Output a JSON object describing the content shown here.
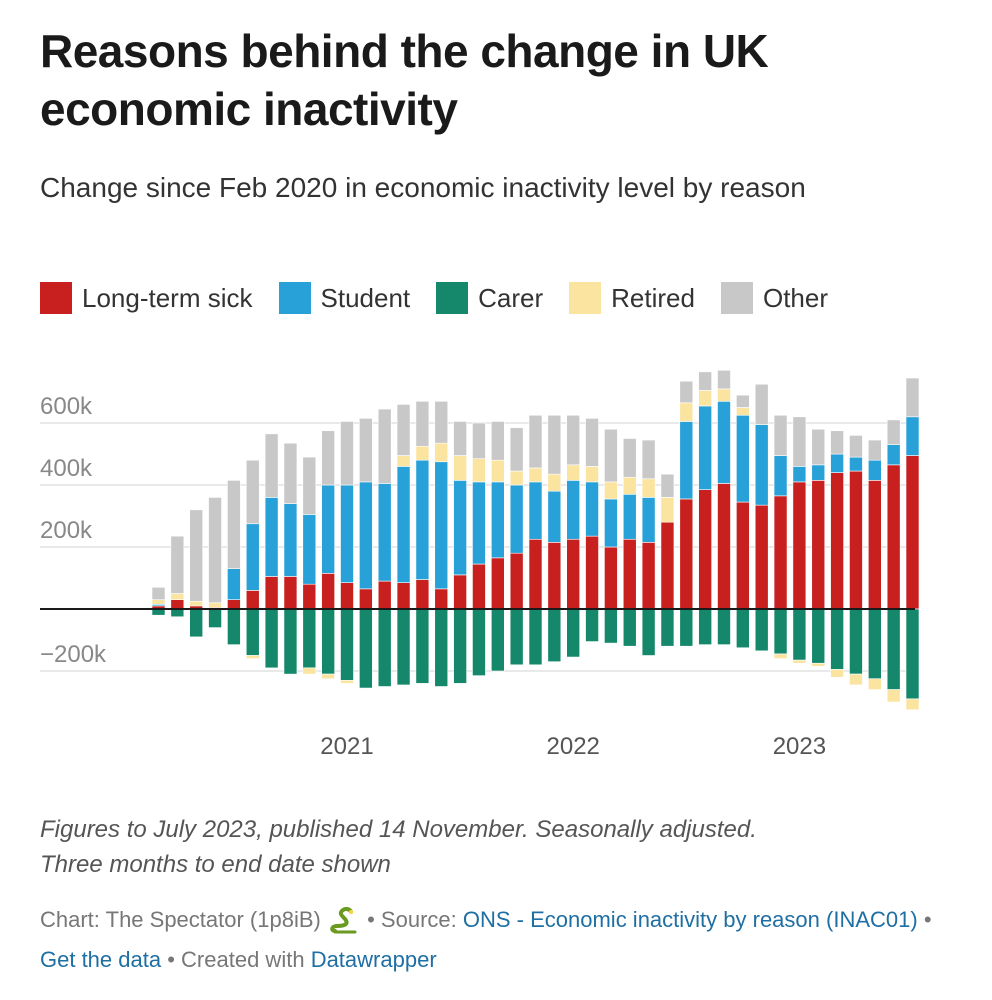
{
  "header": {
    "title": "Reasons behind the change in UK economic inactivity",
    "subtitle": "Change since Feb 2020 in economic inactivity level by reason"
  },
  "legend": [
    {
      "label": "Long-term sick",
      "color": "#c8201f"
    },
    {
      "label": "Student",
      "color": "#28a1d8"
    },
    {
      "label": "Carer",
      "color": "#15876a"
    },
    {
      "label": "Retired",
      "color": "#fbe3a0"
    },
    {
      "label": "Other",
      "color": "#c8c8c8"
    }
  ],
  "chart_data": {
    "type": "bar",
    "stacked": true,
    "x_end_months": [
      "2020-03",
      "2020-04",
      "2020-05",
      "2020-06",
      "2020-07",
      "2020-08",
      "2020-09",
      "2020-10",
      "2020-11",
      "2020-12",
      "2021-01",
      "2021-02",
      "2021-03",
      "2021-04",
      "2021-05",
      "2021-06",
      "2021-07",
      "2021-08",
      "2021-09",
      "2021-10",
      "2021-11",
      "2021-12",
      "2022-01",
      "2022-02",
      "2022-03",
      "2022-04",
      "2022-05",
      "2022-06",
      "2022-07",
      "2022-08",
      "2022-09",
      "2022-10",
      "2022-11",
      "2022-12",
      "2023-01",
      "2023-02",
      "2023-03",
      "2023-04",
      "2023-05",
      "2023-06",
      "2023-07"
    ],
    "x_ticks": [
      {
        "label": "2021",
        "month": "2021-01"
      },
      {
        "label": "2022",
        "month": "2022-01"
      },
      {
        "label": "2023",
        "month": "2023-01"
      }
    ],
    "y_ticks": [
      {
        "value": 600000,
        "label": "600k"
      },
      {
        "value": 400000,
        "label": "400k"
      },
      {
        "value": 200000,
        "label": "200k"
      },
      {
        "value": -200000,
        "label": "−200k"
      }
    ],
    "ylim": [
      -350000,
      800000
    ],
    "grid": true,
    "legend_position": "top",
    "series": [
      {
        "name": "Long-term sick",
        "color": "#c8201f",
        "values": [
          10000,
          30000,
          10000,
          5000,
          30000,
          60000,
          105000,
          105000,
          80000,
          115000,
          85000,
          65000,
          90000,
          85000,
          95000,
          65000,
          110000,
          145000,
          165000,
          180000,
          225000,
          215000,
          225000,
          235000,
          200000,
          225000,
          215000,
          280000,
          355000,
          385000,
          405000,
          345000,
          335000,
          365000,
          410000,
          415000,
          440000,
          445000,
          415000,
          465000,
          495000
        ]
      },
      {
        "name": "Student",
        "color": "#28a1d8",
        "values": [
          5000,
          0,
          0,
          0,
          100000,
          215000,
          255000,
          235000,
          225000,
          285000,
          315000,
          345000,
          315000,
          375000,
          385000,
          410000,
          305000,
          265000,
          245000,
          220000,
          185000,
          165000,
          190000,
          175000,
          155000,
          145000,
          145000,
          0,
          250000,
          270000,
          265000,
          280000,
          260000,
          130000,
          50000,
          50000,
          60000,
          45000,
          65000,
          65000,
          125000
        ]
      },
      {
        "name": "Carer",
        "color": "#15876a",
        "values": [
          -20000,
          -25000,
          -90000,
          -60000,
          -115000,
          -150000,
          -190000,
          -210000,
          -190000,
          -210000,
          -230000,
          -255000,
          -250000,
          -245000,
          -240000,
          -250000,
          -240000,
          -215000,
          -200000,
          -180000,
          -180000,
          -170000,
          -155000,
          -105000,
          -110000,
          -120000,
          -150000,
          -120000,
          -120000,
          -115000,
          -115000,
          -125000,
          -135000,
          -145000,
          -165000,
          -175000,
          -195000,
          -210000,
          -225000,
          -260000,
          -290000
        ]
      },
      {
        "name": "Retired",
        "color": "#fbe3a0",
        "values": [
          15000,
          20000,
          15000,
          15000,
          0,
          -10000,
          0,
          0,
          -20000,
          -15000,
          -10000,
          0,
          0,
          35000,
          45000,
          60000,
          80000,
          75000,
          70000,
          45000,
          45000,
          55000,
          50000,
          50000,
          55000,
          55000,
          60000,
          80000,
          60000,
          50000,
          40000,
          25000,
          0,
          -15000,
          -10000,
          -10000,
          -25000,
          -35000,
          -35000,
          -40000,
          -35000
        ]
      },
      {
        "name": "Other",
        "color": "#c8c8c8",
        "values": [
          40000,
          185000,
          295000,
          340000,
          285000,
          205000,
          205000,
          195000,
          185000,
          175000,
          205000,
          205000,
          240000,
          165000,
          145000,
          135000,
          110000,
          115000,
          125000,
          140000,
          170000,
          190000,
          160000,
          155000,
          170000,
          125000,
          125000,
          75000,
          70000,
          60000,
          60000,
          40000,
          130000,
          130000,
          160000,
          115000,
          75000,
          70000,
          65000,
          80000,
          125000
        ]
      }
    ]
  },
  "notes": {
    "line1": "Figures to July 2023, published 14 November. Seasonally adjusted.",
    "line2": "Three months to end date shown"
  },
  "footer": {
    "chart_credit": "Chart: The Spectator (1p8iB)",
    "sep": "•",
    "source_prefix": "Source:",
    "source_link": "ONS - Economic inactivity by reason (INAC01)",
    "get_data": "Get the data",
    "created_with": "Created with",
    "datawrapper": "Datawrapper",
    "emoji_icon": "snake-icon"
  }
}
